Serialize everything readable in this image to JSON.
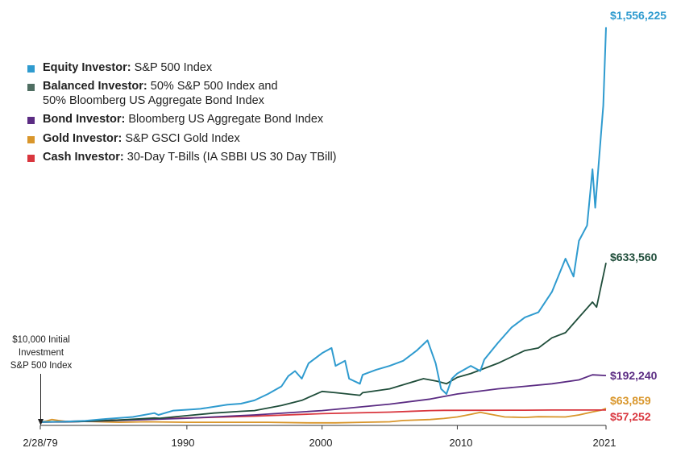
{
  "chart_data": {
    "type": "line",
    "title": "",
    "xlabel": "",
    "ylabel": "",
    "x_start": 1979.16,
    "x_end": 2021,
    "ylim": [
      0,
      1600000
    ],
    "grid": false,
    "legend_position": "top-left",
    "x_ticks": [
      {
        "value": 1979.16,
        "label": "2/28/79"
      },
      {
        "value": 1990,
        "label": "1990"
      },
      {
        "value": 2000,
        "label": "2000"
      },
      {
        "value": 2010,
        "label": "2010"
      },
      {
        "value": 2021,
        "label": "2021"
      }
    ],
    "annotation": {
      "lines": [
        "$10,000 Initial",
        "Investment",
        "S&P 500 Index"
      ],
      "x": 1979.16
    },
    "series": [
      {
        "key": "equity",
        "name": "Equity Investor:",
        "desc": "S&P 500 Index",
        "desc2": "",
        "color": "#2f9bcf",
        "end_label": "$1,556,225",
        "x": [
          1979.16,
          1981,
          1982.5,
          1984,
          1986,
          1987.6,
          1987.9,
          1989,
          1990.5,
          1991,
          1993,
          1994,
          1995,
          1996,
          1997,
          1997.5,
          1998,
          1998.5,
          1999,
          2000,
          2000.7,
          2001,
          2001.7,
          2002,
          2002.8,
          2003,
          2004,
          2005,
          2006,
          2007,
          2007.8,
          2008.4,
          2008.8,
          2009.2,
          2009.6,
          2010,
          2011,
          2011.7,
          2012,
          2013,
          2014,
          2015,
          2016,
          2017,
          2018,
          2018.6,
          2019,
          2019.6,
          2020,
          2020.2,
          2020.5,
          2020.8,
          2021
        ],
        "values": [
          10000,
          12000,
          15000,
          22000,
          30000,
          45000,
          38000,
          55000,
          60000,
          62000,
          78000,
          82000,
          95000,
          120000,
          150000,
          190000,
          210000,
          180000,
          240000,
          280000,
          300000,
          230000,
          250000,
          180000,
          160000,
          195000,
          215000,
          230000,
          250000,
          290000,
          330000,
          240000,
          140000,
          120000,
          180000,
          200000,
          230000,
          210000,
          255000,
          320000,
          380000,
          420000,
          440000,
          520000,
          650000,
          580000,
          720000,
          780000,
          1000000,
          850000,
          1050000,
          1250000,
          1556225
        ]
      },
      {
        "key": "balanced",
        "name": "Balanced Investor:",
        "desc": "50% S&P 500 Index and",
        "desc2": "50% Bloomberg US Aggregate Bond Index",
        "color": "#1f4d3a",
        "end_label": "$633,560",
        "x": [
          1979.16,
          1982,
          1985,
          1987.6,
          1988,
          1990,
          1992,
          1994,
          1995,
          1997,
          1998.5,
          2000,
          2001,
          2002.8,
          2003,
          2005,
          2007.5,
          2008.5,
          2009.2,
          2010,
          2011,
          2013,
          2015,
          2016,
          2017,
          2018,
          2019,
          2020,
          2020.3,
          2021
        ],
        "values": [
          10000,
          12000,
          18000,
          26000,
          25000,
          35000,
          45000,
          52000,
          55000,
          75000,
          95000,
          130000,
          125000,
          115000,
          125000,
          140000,
          180000,
          170000,
          160000,
          185000,
          200000,
          240000,
          290000,
          300000,
          340000,
          360000,
          420000,
          480000,
          460000,
          633560
        ]
      },
      {
        "key": "bond",
        "name": "Bond Investor:",
        "desc": "Bloomberg US Aggregate Bond Index",
        "desc2": "",
        "color": "#5b2c83",
        "end_label": "$192,240",
        "x": [
          1979.16,
          1981,
          1985,
          1990,
          1995,
          2000,
          2005,
          2008,
          2010,
          2013,
          2015,
          2017,
          2019,
          2020,
          2021
        ],
        "values": [
          10000,
          10500,
          16000,
          25000,
          38000,
          55000,
          80000,
          100000,
          120000,
          140000,
          150000,
          160000,
          175000,
          195000,
          192240
        ]
      },
      {
        "key": "gold",
        "name": "Gold Investor:",
        "desc": "S&P GSCI Gold Index",
        "desc2": "",
        "color": "#d9962b",
        "end_label": "$63,859",
        "x": [
          1979.16,
          1979.6,
          1980,
          1980.5,
          1981,
          1983,
          1985,
          1987,
          1990,
          1993,
          1996,
          1999,
          2001,
          2003,
          2005,
          2006,
          2008,
          2009,
          2010,
          2011,
          2011.7,
          2012,
          2013,
          2013.5,
          2015,
          2016,
          2018,
          2019,
          2020,
          2020.6,
          2021
        ],
        "values": [
          10000,
          14000,
          20000,
          16000,
          13000,
          12000,
          9000,
          11000,
          9000,
          9000,
          9000,
          7000,
          7000,
          9000,
          11000,
          16000,
          20000,
          24000,
          30000,
          40000,
          48000,
          45000,
          35000,
          30000,
          28000,
          31000,
          30000,
          38000,
          50000,
          56000,
          63859
        ]
      },
      {
        "key": "cash",
        "name": "Cash Investor:",
        "desc": "30-Day T-Bills (IA SBBI US 30 Day TBill)",
        "desc2": "",
        "color": "#d9363e",
        "end_label": "$57,252",
        "x": [
          1979.16,
          1982,
          1985,
          1990,
          1995,
          2000,
          2005,
          2008,
          2009,
          2015,
          2017,
          2021
        ],
        "values": [
          10000,
          13500,
          18000,
          26000,
          33000,
          43000,
          49000,
          55000,
          56000,
          56500,
          57000,
          57252
        ]
      }
    ]
  }
}
